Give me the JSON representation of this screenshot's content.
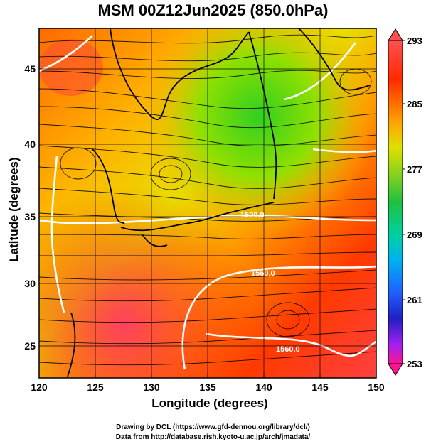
{
  "title": "MSM 00Z12Jun2025 (850.0hPa)",
  "x_axis": {
    "label": "Longitude (degrees)",
    "ticks": [
      "120",
      "125",
      "130",
      "135",
      "140",
      "145",
      "150"
    ]
  },
  "y_axis": {
    "label": "Latitude  (degrees)",
    "ticks": [
      "25",
      "30",
      "35",
      "40",
      "45"
    ]
  },
  "colorbar": {
    "ticks": [
      "293",
      "285",
      "277",
      "269",
      "261",
      "253"
    ],
    "colors": [
      "#ff1493",
      "#a020f0",
      "#2020c0",
      "#2060ff",
      "#00b0f0",
      "#00d0a0",
      "#20c040",
      "#60d020",
      "#b0e000",
      "#ffe000",
      "#ff8000",
      "#ff3000",
      "#ff5050"
    ]
  },
  "contour_labels": [
    "1520.0",
    "1560.0",
    "1560.0"
  ],
  "credits": {
    "line1": "Drawing by DCL (https://www.gfd-dennou.org/library/dcl/)",
    "line2": "Data from http://database.rish.kyoto-u.ac.jp/arch/jmadata/"
  },
  "chart_data": {
    "type": "heatmap",
    "title": "MSM 00Z12Jun2025 (850.0hPa)",
    "xlabel": "Longitude (degrees)",
    "ylabel": "Latitude  (degrees)",
    "xlim": [
      120,
      150
    ],
    "ylim": [
      22.4,
      47.6
    ],
    "colorbar_range": [
      253,
      293
    ],
    "grid": true,
    "overlays": [
      "streamlines",
      "geopotential height contours (white)",
      "coastlines"
    ]
  }
}
